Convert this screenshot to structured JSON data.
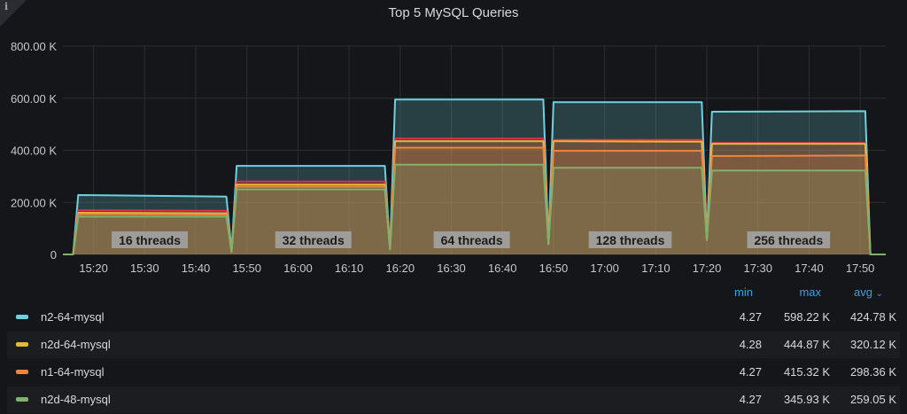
{
  "panel": {
    "title": "Top 5 MySQL Queries",
    "info_icon": "info-icon"
  },
  "chart_data": {
    "type": "area",
    "title": "Top 5 MySQL Queries",
    "xlabel": "",
    "ylabel": "",
    "yticks": [
      "0",
      "200.00 K",
      "400.00 K",
      "600.00 K",
      "800.00 K"
    ],
    "ylim": [
      0,
      800000
    ],
    "xticks": [
      "15:20",
      "15:30",
      "15:40",
      "15:50",
      "16:00",
      "16:10",
      "16:20",
      "16:30",
      "16:40",
      "16:50",
      "17:00",
      "17:10",
      "17:20",
      "17:30",
      "17:40",
      "17:50"
    ],
    "xlim": [
      "15:14",
      "17:55"
    ],
    "grid": true,
    "x": [
      "15:14",
      "15:16",
      "15:17",
      "15:46",
      "15:47",
      "15:48",
      "16:17",
      "16:18",
      "16:19",
      "16:48",
      "16:49",
      "16:50",
      "17:19",
      "17:20",
      "17:21",
      "17:51",
      "17:52",
      "17:55"
    ],
    "series": [
      {
        "name": "n2-64-mysql",
        "color": "#6ed0e0",
        "values": [
          0,
          0,
          228000,
          222000,
          15000,
          340000,
          340000,
          20000,
          595000,
          595000,
          50000,
          585000,
          585000,
          60000,
          548000,
          550000,
          0,
          0
        ]
      },
      {
        "color": "#e02f44",
        "values": [
          0,
          0,
          170000,
          168000,
          10000,
          280000,
          280000,
          20000,
          445000,
          445000,
          40000,
          440000,
          440000,
          55000,
          428000,
          428000,
          0,
          0
        ]
      },
      {
        "name": "n2d-64-mysql",
        "color": "#eab839",
        "values": [
          0,
          0,
          160000,
          158000,
          10000,
          268000,
          268000,
          20000,
          435000,
          435000,
          40000,
          435000,
          433000,
          55000,
          425000,
          425000,
          0,
          0
        ]
      },
      {
        "name": "n1-64-mysql",
        "color": "#ef843c",
        "values": [
          0,
          0,
          155000,
          153000,
          10000,
          260000,
          260000,
          20000,
          410000,
          410000,
          40000,
          398000,
          398000,
          55000,
          378000,
          380000,
          0,
          0
        ]
      },
      {
        "name": "n2d-48-mysql",
        "color": "#7eb26d",
        "values": [
          0,
          0,
          145000,
          145000,
          10000,
          250000,
          250000,
          20000,
          345000,
          345000,
          40000,
          333000,
          333000,
          55000,
          322000,
          322000,
          0,
          0
        ]
      }
    ],
    "annotations": [
      {
        "text": "16 threads",
        "x": "15:31"
      },
      {
        "text": "32 threads",
        "x": "16:03"
      },
      {
        "text": "64 threads",
        "x": "16:34"
      },
      {
        "text": "128 threads",
        "x": "17:05"
      },
      {
        "text": "256 threads",
        "x": "17:36"
      }
    ],
    "legend_placement": "bottom"
  },
  "legend": {
    "headers": {
      "min": "min",
      "max": "max",
      "avg": "avg"
    },
    "sort_icon": "chevron-down-icon",
    "rows": [
      {
        "name": "n2-64-mysql",
        "color": "#6ed0e0",
        "min": "4.27",
        "max": "598.22 K",
        "avg": "424.78 K"
      },
      {
        "name": "n2d-64-mysql",
        "color": "#eab839",
        "min": "4.28",
        "max": "444.87 K",
        "avg": "320.12 K"
      },
      {
        "name": "n1-64-mysql",
        "color": "#ef843c",
        "min": "4.27",
        "max": "415.32 K",
        "avg": "298.36 K"
      },
      {
        "name": "n2d-48-mysql",
        "color": "#7eb26d",
        "min": "4.27",
        "max": "345.93 K",
        "avg": "259.05 K"
      }
    ]
  }
}
